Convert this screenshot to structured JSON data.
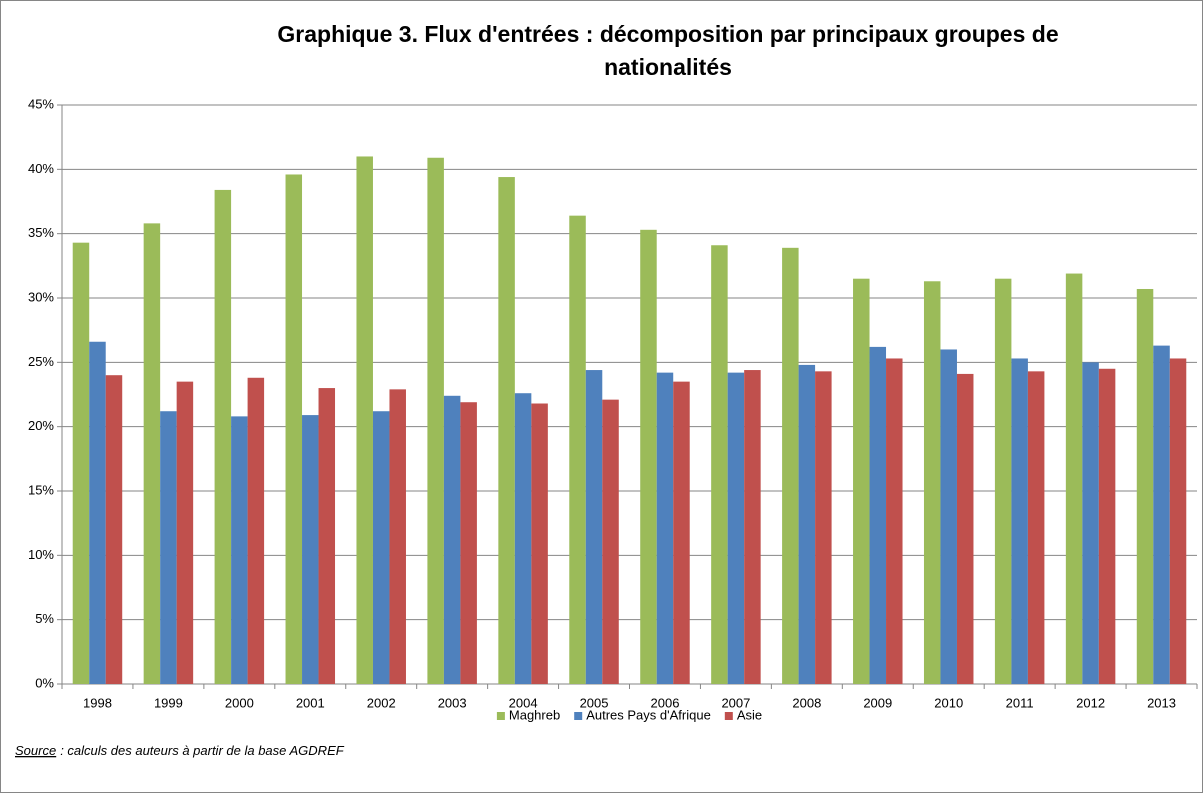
{
  "chart_data": {
    "type": "bar",
    "title": "Graphique 3. Flux d'entrées : décomposition par principaux groupes de nationalités",
    "categories": [
      "1998",
      "1999",
      "2000",
      "2001",
      "2002",
      "2003",
      "2004",
      "2005",
      "2006",
      "2007",
      "2008",
      "2009",
      "2010",
      "2011",
      "2012",
      "2013"
    ],
    "series": [
      {
        "name": "Maghreb",
        "color": "#9bbb59",
        "values": [
          34.3,
          35.8,
          38.4,
          39.6,
          41.0,
          40.9,
          39.4,
          36.4,
          35.3,
          34.1,
          33.9,
          31.5,
          31.3,
          31.5,
          31.9,
          30.7
        ]
      },
      {
        "name": "Autres Pays d'Afrique",
        "color": "#4f81bd",
        "values": [
          26.6,
          21.2,
          20.8,
          20.9,
          21.2,
          22.4,
          22.6,
          24.4,
          24.2,
          24.2,
          24.8,
          26.2,
          26.0,
          25.3,
          25.0,
          26.3
        ]
      },
      {
        "name": "Asie",
        "color": "#c0504d",
        "values": [
          24.0,
          23.5,
          23.8,
          23.0,
          22.9,
          21.9,
          21.8,
          22.1,
          23.5,
          24.4,
          24.3,
          25.3,
          24.1,
          24.3,
          24.5,
          25.3
        ]
      }
    ],
    "ylim": [
      0,
      45
    ],
    "yticks": [
      {
        "value": 0,
        "label": "0%"
      },
      {
        "value": 5,
        "label": "5%"
      },
      {
        "value": 10,
        "label": "10%"
      },
      {
        "value": 15,
        "label": "15%"
      },
      {
        "value": 20,
        "label": "20%"
      },
      {
        "value": 25,
        "label": "25%"
      },
      {
        "value": 30,
        "label": "30%"
      },
      {
        "value": 35,
        "label": "35%"
      },
      {
        "value": 40,
        "label": "40%"
      },
      {
        "value": 45,
        "label": "45%"
      }
    ],
    "grid": true,
    "legend": "bottom",
    "source": {
      "label": "Source",
      "text": ": calculs des auteurs à partir de la base AGDREF"
    }
  }
}
